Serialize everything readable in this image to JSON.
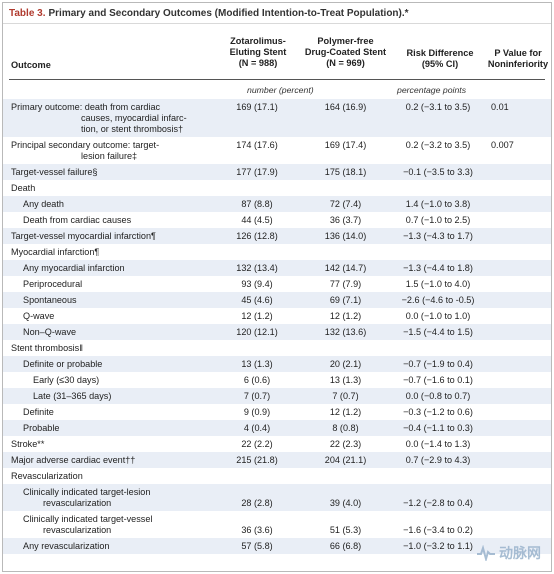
{
  "table_title": {
    "number": "Table 3.",
    "text": "Primary and Secondary Outcomes (Modified Intention-to-Treat Population).*"
  },
  "headers": {
    "outcome": "Outcome",
    "col1": [
      "Zotarolimus-",
      "Eluting Stent",
      "(N = 988)"
    ],
    "col2": [
      "Polymer-free",
      "Drug-Coated Stent",
      "(N = 969)"
    ],
    "col3": [
      "Risk Difference",
      "(95% CI)"
    ],
    "col4": [
      "P Value for",
      "Noninferiority"
    ]
  },
  "units": {
    "counts": "number (percent)",
    "difference": "percentage points"
  },
  "rows": [
    {
      "label": [
        "Primary outcome: death from cardiac",
        "causes, myocardial infarc-",
        "tion, or stent thrombosis†"
      ],
      "indent": 0,
      "c1": "169 (17.1)",
      "c2": "164 (16.9)",
      "c3": "0.2 (−3.1 to 3.5)",
      "c4": "0.01"
    },
    {
      "label": [
        "Principal secondary outcome: target-",
        "lesion failure‡"
      ],
      "indent": 0,
      "c1": "174 (17.6)",
      "c2": "169 (17.4)",
      "c3": "0.2 (−3.2 to 3.5)",
      "c4": "0.007"
    },
    {
      "label": [
        "Target-vessel failure§"
      ],
      "indent": 0,
      "c1": "177 (17.9)",
      "c2": "175 (18.1)",
      "c3": "−0.1 (−3.5 to 3.3)",
      "c4": ""
    },
    {
      "label": [
        "Death"
      ],
      "indent": 0,
      "c1": "",
      "c2": "",
      "c3": "",
      "c4": ""
    },
    {
      "label": [
        "Any death"
      ],
      "indent": 1,
      "c1": "87 (8.8)",
      "c2": "72 (7.4)",
      "c3": "1.4 (−1.0 to 3.8)",
      "c4": ""
    },
    {
      "label": [
        "Death from cardiac causes"
      ],
      "indent": 1,
      "c1": "44 (4.5)",
      "c2": "36 (3.7)",
      "c3": "0.7 (−1.0 to 2.5)",
      "c4": ""
    },
    {
      "label": [
        "Target-vessel myocardial infarction¶"
      ],
      "indent": 0,
      "c1": "126 (12.8)",
      "c2": "136 (14.0)",
      "c3": "−1.3 (−4.3 to 1.7)",
      "c4": ""
    },
    {
      "label": [
        "Myocardial infarction¶"
      ],
      "indent": 0,
      "c1": "",
      "c2": "",
      "c3": "",
      "c4": ""
    },
    {
      "label": [
        "Any myocardial infarction"
      ],
      "indent": 1,
      "c1": "132 (13.4)",
      "c2": "142 (14.7)",
      "c3": "−1.3 (−4.4 to 1.8)",
      "c4": ""
    },
    {
      "label": [
        "Periprocedural"
      ],
      "indent": 1,
      "c1": "93 (9.4)",
      "c2": "77 (7.9)",
      "c3": "1.5 (−1.0 to 4.0)",
      "c4": ""
    },
    {
      "label": [
        "Spontaneous"
      ],
      "indent": 1,
      "c1": "45 (4.6)",
      "c2": "69 (7.1)",
      "c3": "−2.6 (−4.6 to -0.5)",
      "c4": ""
    },
    {
      "label": [
        "Q-wave"
      ],
      "indent": 1,
      "c1": "12 (1.2)",
      "c2": "12 (1.2)",
      "c3": "0.0 (−1.0 to 1.0)",
      "c4": ""
    },
    {
      "label": [
        "Non–Q-wave"
      ],
      "indent": 1,
      "c1": "120 (12.1)",
      "c2": "132 (13.6)",
      "c3": "−1.5 (−4.4 to 1.5)",
      "c4": ""
    },
    {
      "label": [
        "Stent thrombosis‖"
      ],
      "indent": 0,
      "c1": "",
      "c2": "",
      "c3": "",
      "c4": ""
    },
    {
      "label": [
        "Definite or probable"
      ],
      "indent": 1,
      "c1": "13 (1.3)",
      "c2": "20 (2.1)",
      "c3": "−0.7 (−1.9 to 0.4)",
      "c4": ""
    },
    {
      "label": [
        "Early (≤30 days)"
      ],
      "indent": 2,
      "c1": "6 (0.6)",
      "c2": "13 (1.3)",
      "c3": "−0.7 (−1.6 to 0.1)",
      "c4": ""
    },
    {
      "label": [
        "Late (31–365 days)"
      ],
      "indent": 2,
      "c1": "7 (0.7)",
      "c2": "7 (0.7)",
      "c3": "0.0 (−0.8 to 0.7)",
      "c4": ""
    },
    {
      "label": [
        "Definite"
      ],
      "indent": 1,
      "c1": "9 (0.9)",
      "c2": "12 (1.2)",
      "c3": "−0.3 (−1.2 to 0.6)",
      "c4": ""
    },
    {
      "label": [
        "Probable"
      ],
      "indent": 1,
      "c1": "4 (0.4)",
      "c2": "8 (0.8)",
      "c3": "−0.4 (−1.1 to 0.3)",
      "c4": ""
    },
    {
      "label": [
        "Stroke**"
      ],
      "indent": 0,
      "c1": "22 (2.2)",
      "c2": "22 (2.3)",
      "c3": "0.0 (−1.4 to 1.3)",
      "c4": ""
    },
    {
      "label": [
        "Major adverse cardiac event††"
      ],
      "indent": 0,
      "c1": "215 (21.8)",
      "c2": "204 (21.1)",
      "c3": "0.7 (−2.9 to 4.3)",
      "c4": ""
    },
    {
      "label": [
        "Revascularization"
      ],
      "indent": 0,
      "c1": "",
      "c2": "",
      "c3": "",
      "c4": ""
    },
    {
      "label": [
        "Clinically indicated target-lesion",
        "revascularization"
      ],
      "indent": 1,
      "c1": "28 (2.8)",
      "c2": "39 (4.0)",
      "c3": "−1.2 (−2.8 to 0.4)",
      "c4": ""
    },
    {
      "label": [
        "Clinically indicated target-vessel",
        "revascularization"
      ],
      "indent": 1,
      "c1": "36 (3.6)",
      "c2": "51 (5.3)",
      "c3": "−1.6 (−3.4 to 0.2)",
      "c4": ""
    },
    {
      "label": [
        "Any revascularization"
      ],
      "indent": 1,
      "c1": "57 (5.8)",
      "c2": "66 (6.8)",
      "c3": "−1.0 (−3.2 to 1.1)",
      "c4": ""
    }
  ],
  "watermark": "动脉网",
  "colors": {
    "title_number": "#b03a2e",
    "row_shade": "#e9eef6",
    "watermark": "#9ab3cc"
  }
}
